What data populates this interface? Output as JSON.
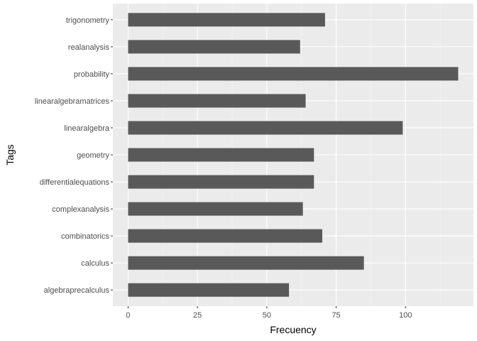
{
  "chart_data": {
    "type": "bar",
    "orientation": "horizontal",
    "categories": [
      "algebraprecalculus",
      "calculus",
      "combinatorics",
      "complexanalysis",
      "differentialequations",
      "geometry",
      "linearalgebra",
      "linearalgebramatrices",
      "probability",
      "realanalysis",
      "trigonometry"
    ],
    "values": [
      58,
      85,
      70,
      63,
      67,
      67,
      99,
      64,
      119,
      62,
      71
    ],
    "xlabel": "Frecuency",
    "ylabel": "Tags",
    "xlim": [
      -5.5,
      124.5
    ],
    "xticks": [
      "0",
      "25",
      "50",
      "75",
      "100"
    ],
    "bar_color": "#595959",
    "panel_color": "#ebebeb",
    "grid": true,
    "legend": "none"
  }
}
